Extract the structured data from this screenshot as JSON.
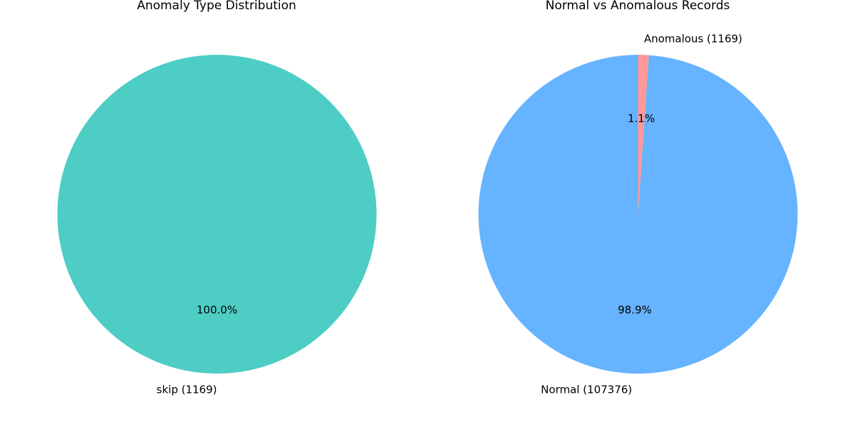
{
  "chart_data": [
    {
      "type": "pie",
      "title": "Anomaly Type Distribution",
      "slices": [
        {
          "label": "skip (1169)",
          "value": 1169,
          "percent_label": "100.0%",
          "color": "#4ecdc4"
        }
      ]
    },
    {
      "type": "pie",
      "title": "Normal vs Anomalous Records",
      "slices": [
        {
          "label": "Normal (107376)",
          "value": 107376,
          "percent_label": "98.9%",
          "color": "#66b3ff"
        },
        {
          "label": "Anomalous (1169)",
          "value": 1169,
          "percent_label": "1.1%",
          "color": "#ff9999"
        }
      ]
    }
  ]
}
